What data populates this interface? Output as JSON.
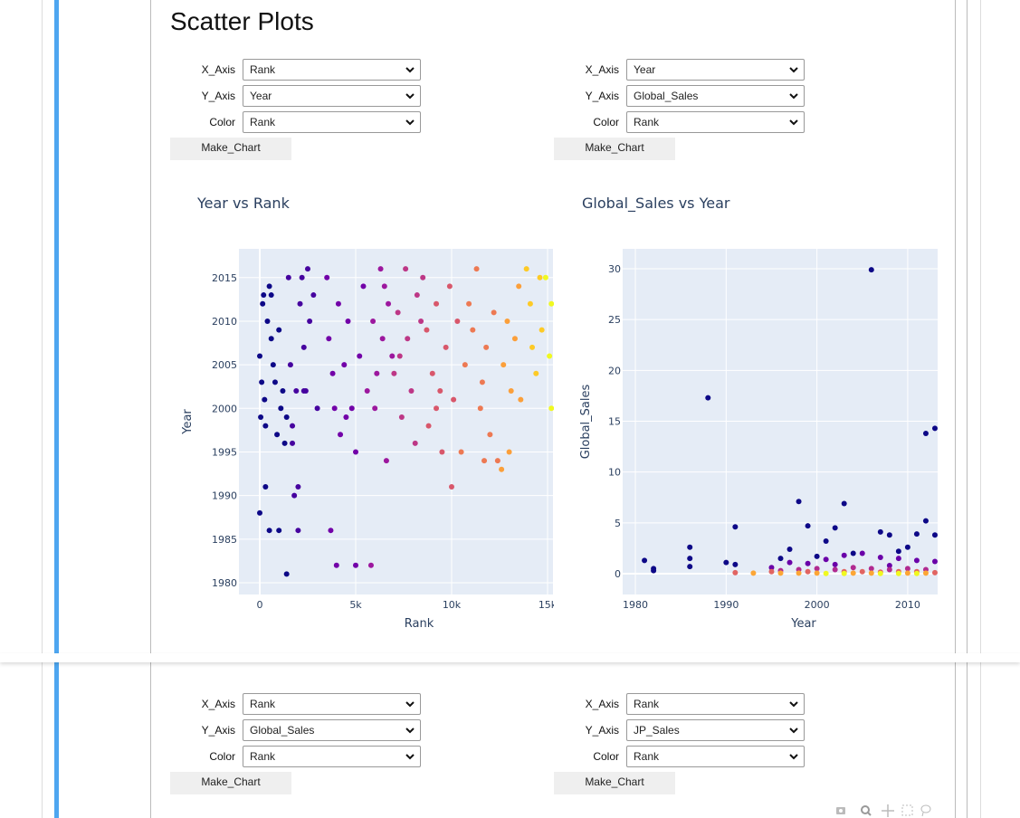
{
  "header": {
    "title": "Scatter Plots"
  },
  "panels": [
    {
      "controls": [
        {
          "label": "X_Axis",
          "value": "Rank"
        },
        {
          "label": "Y_Axis",
          "value": "Year"
        },
        {
          "label": "Color",
          "value": "Rank"
        }
      ],
      "button": "Make_Chart",
      "chart": {
        "type": "scatter",
        "title": "Year vs Rank",
        "x_label": "Rank",
        "y_label": "Year",
        "xlim": [
          -1085,
          15283
        ],
        "ylim": [
          1978.65,
          2018.3
        ],
        "xticks": [
          0,
          {
            "value": 5000,
            "label": "5k"
          },
          {
            "value": 10000,
            "label": "10k"
          },
          {
            "value": 15000,
            "label": "15k"
          }
        ],
        "yticks": [
          1980,
          1985,
          1990,
          1995,
          2000,
          2005,
          2010,
          2015
        ],
        "grid": true,
        "series": [
          {
            "color": "#0d0887",
            "x": [
              0,
              100,
              150,
              200,
              50,
              300,
              250,
              400,
              500,
              600,
              700,
              800,
              900,
              1000,
              1100,
              1200,
              1400,
              300,
              0,
              500,
              1300,
              1400,
              600,
              1000
            ],
            "values": [
              2006,
              2003,
              2012,
              2013,
              1999,
              1998,
              2001,
              2010,
              2014,
              2008,
              2005,
              2003,
              1997,
              1986,
              2000,
              2002,
              1999,
              1991,
              1988,
              1986,
              1996,
              1981,
              2013,
              2009
            ]
          },
          {
            "color": "#46039f",
            "x": [
              1500,
              1600,
              1700,
              1800,
              1900,
              2000,
              2100,
              2200,
              2300,
              2400,
              2500,
              2600,
              2800,
              3000,
              1700,
              2000,
              2300
            ],
            "values": [
              2015,
              2005,
              1998,
              1990,
              2002,
              1991,
              2012,
              2015,
              2007,
              2002,
              2016,
              2010,
              2013,
              2000,
              1996,
              1986,
              2002
            ]
          },
          {
            "color": "#7201a8",
            "x": [
              3500,
              3600,
              3700,
              3800,
              4000,
              4100,
              4200,
              4400,
              4600,
              4800,
              5000,
              5000,
              5200,
              5400,
              3900,
              4500
            ],
            "values": [
              2015,
              2008,
              1986,
              2004,
              1982,
              2012,
              1997,
              2005,
              2010,
              2000,
              1982,
              1995,
              2006,
              2014,
              2000,
              1999
            ]
          },
          {
            "color": "#9c179e",
            "x": [
              5600,
              5800,
              5900,
              6100,
              6300,
              6400,
              6600,
              6700,
              6900,
              6000,
              6500
            ],
            "values": [
              2002,
              1982,
              2010,
              2004,
              2016,
              2008,
              1994,
              2012,
              2006,
              2000,
              2014
            ]
          },
          {
            "color": "#bd3786",
            "x": [
              7000,
              7200,
              7400,
              7600,
              7700,
              7900,
              8100,
              8200,
              8400,
              8500,
              7300
            ],
            "values": [
              2004,
              2011,
              1999,
              2016,
              2008,
              2002,
              1996,
              2013,
              2010,
              2015,
              2006
            ]
          },
          {
            "color": "#d8576b",
            "x": [
              8700,
              8800,
              9000,
              9200,
              9400,
              9500,
              9700,
              9900,
              10000,
              10100,
              10300,
              9200
            ],
            "values": [
              2009,
              1998,
              2004,
              2012,
              2002,
              1995,
              2007,
              2014,
              1991,
              2001,
              2010,
              2000
            ]
          },
          {
            "color": "#ed7953",
            "x": [
              10500,
              10700,
              10900,
              11100,
              11300,
              11500,
              11700,
              11800,
              12000,
              12200,
              12400,
              11600
            ],
            "values": [
              1995,
              2005,
              2012,
              2009,
              2016,
              2000,
              1994,
              2007,
              1997,
              2011,
              1994,
              2003
            ]
          },
          {
            "color": "#fb9f3a",
            "x": [
              12600,
              12700,
              12900,
              13100,
              13300,
              13500,
              13000,
              13600
            ],
            "values": [
              1993,
              2005,
              2010,
              2002,
              2008,
              2014,
              1995,
              2001
            ]
          },
          {
            "color": "#fdca26",
            "x": [
              13900,
              14100,
              14200,
              14400,
              14600,
              14700
            ],
            "values": [
              2016,
              2012,
              2007,
              2004,
              2015,
              2009
            ]
          },
          {
            "color": "#f0f921",
            "x": [
              14900,
              15100,
              15200,
              15200
            ],
            "values": [
              2015,
              2006,
              2000,
              2012
            ]
          }
        ]
      }
    },
    {
      "controls": [
        {
          "label": "X_Axis",
          "value": "Year"
        },
        {
          "label": "Y_Axis",
          "value": "Global_Sales"
        },
        {
          "label": "Color",
          "value": "Rank"
        }
      ],
      "button": "Make_Chart",
      "chart": {
        "type": "scatter",
        "title": "Global_Sales vs Year",
        "x_label": "Year",
        "y_label": "Global_Sales",
        "xlim": [
          1978.6,
          2013.3
        ],
        "ylim": [
          -2.05,
          31.96
        ],
        "xticks": [
          1980,
          1990,
          2000,
          2010
        ],
        "yticks": [
          0,
          5,
          10,
          15,
          20,
          25,
          30
        ],
        "grid": true,
        "series": [
          {
            "color": "#0d0887",
            "x": [
              1981,
              1982,
              1982,
              1986,
              1986,
              1986,
              1988,
              1990,
              1991,
              1991,
              1996,
              1997,
              1998,
              1999,
              2000,
              2001,
              2002,
              2003,
              2004,
              2006,
              2007,
              2008,
              2009,
              2010,
              2011,
              2012,
              2012,
              2013,
              2013
            ],
            "values": [
              1.3,
              0.5,
              0.3,
              2.6,
              1.5,
              0.7,
              17.3,
              1.1,
              4.6,
              0.9,
              1.5,
              2.4,
              7.1,
              4.7,
              1.7,
              3.2,
              4.5,
              6.9,
              2.0,
              29.9,
              4.1,
              3.8,
              2.2,
              2.6,
              3.9,
              13.8,
              5.2,
              14.3,
              3.8
            ]
          },
          {
            "color": "#6a00a8",
            "x": [
              1995,
              1997,
              1999,
              2001,
              2003,
              2005,
              2007,
              2009,
              2011,
              2013,
              2002,
              2008
            ],
            "values": [
              0.6,
              1.1,
              1.0,
              1.4,
              1.8,
              2.0,
              1.6,
              1.5,
              1.3,
              1.2,
              0.9,
              0.8
            ]
          },
          {
            "color": "#b12a90",
            "x": [
              1996,
              1998,
              2000,
              2002,
              2004,
              2006,
              2008,
              2010,
              2012
            ],
            "values": [
              0.3,
              0.4,
              0.5,
              0.4,
              0.6,
              0.5,
              0.4,
              0.5,
              0.4
            ]
          },
          {
            "color": "#e16462",
            "x": [
              1991,
              1995,
              1999,
              2003,
              2005,
              2007,
              2009,
              2011,
              2013
            ],
            "values": [
              0.1,
              0.2,
              0.2,
              0.2,
              0.2,
              0.15,
              0.2,
              0.2,
              0.1
            ]
          },
          {
            "color": "#fca636",
            "x": [
              1993,
              1996,
              1998,
              2000,
              2004,
              2006,
              2010,
              2012
            ],
            "values": [
              0.05,
              0.05,
              0.05,
              0.05,
              0.05,
              0.05,
              0.05,
              0.05
            ]
          },
          {
            "color": "#f0f921",
            "x": [
              2001,
              2003,
              2007,
              2009,
              2011
            ],
            "values": [
              0.02,
              0.02,
              0.02,
              0.02,
              0.02
            ]
          }
        ]
      }
    }
  ],
  "bottom_panels": [
    {
      "controls": [
        {
          "label": "X_Axis",
          "value": "Rank"
        },
        {
          "label": "Y_Axis",
          "value": "Global_Sales"
        },
        {
          "label": "Color",
          "value": "Rank"
        }
      ],
      "button": "Make_Chart"
    },
    {
      "controls": [
        {
          "label": "X_Axis",
          "value": "Rank"
        },
        {
          "label": "Y_Axis",
          "value": "JP_Sales"
        },
        {
          "label": "Color",
          "value": "Rank"
        }
      ],
      "button": "Make_Chart"
    }
  ]
}
